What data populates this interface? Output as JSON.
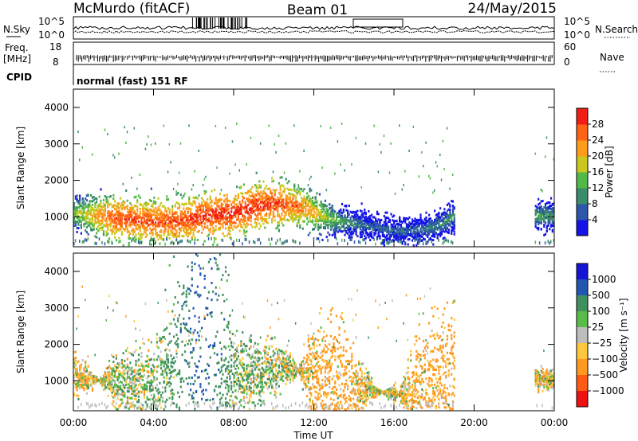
{
  "header": {
    "station": "McMurdo (fitACF)",
    "beam": "Beam 01",
    "date": "24/May/2015"
  },
  "status_panel": {
    "left_labels": [
      "N.Sky",
      "Freq.",
      "[MHz]",
      "CPID"
    ],
    "right_labels": [
      "N.Search",
      "Nave"
    ],
    "sky_ticks": [
      "10^5",
      "10^0"
    ],
    "search_ticks": [
      "10^5",
      "10^0"
    ],
    "freq_ticks": [
      "18",
      "8"
    ],
    "nave_ticks": [
      "60",
      "0"
    ],
    "cpid_text": "normal (fast) 151 RF"
  },
  "time_axis": {
    "label": "Time UT",
    "ticks": [
      "00:00",
      "04:00",
      "08:00",
      "12:00",
      "16:00",
      "20:00",
      "00:00"
    ]
  },
  "colors": {
    "power": [
      "#1414e6",
      "#2d57a8",
      "#3b8c6a",
      "#52b848",
      "#c8c81e",
      "#ff9c1e",
      "#ff6414",
      "#f01e14"
    ],
    "velocity": [
      "#ee1111",
      "#ff5a14",
      "#ff9a1e",
      "#ffc83c",
      "#bdbdbd",
      "#58bc48",
      "#3f8f5f",
      "#2157b0",
      "#1414d6"
    ]
  },
  "chart_data": [
    {
      "type": "heatmap",
      "title": "",
      "xlabel": "Time UT",
      "ylabel": "Slant Range [km]",
      "xlim": [
        0,
        24
      ],
      "ylim": [
        180,
        4500
      ],
      "yticks": [
        "1000",
        "2000",
        "3000",
        "4000"
      ],
      "colorbar": {
        "label": "Power [dB]",
        "ticks": [
          "4",
          "8",
          "12",
          "16",
          "20",
          "24",
          "28"
        ],
        "range": [
          0,
          32
        ]
      },
      "series": [
        {
          "x": [
            0.0,
            1.0,
            2.0,
            3.0,
            4.0,
            5.0,
            6.0,
            7.0,
            8.0,
            9.0,
            10.0,
            11.0,
            12.0,
            13.0,
            14.0,
            15.0,
            16.0,
            17.0,
            18.0,
            19.0,
            20.0,
            21.0,
            22.0,
            23.0,
            24.0
          ],
          "range_center": [
            1100,
            1000,
            950,
            900,
            850,
            850,
            950,
            1050,
            1100,
            1250,
            1350,
            1300,
            1100,
            900,
            800,
            700,
            600,
            600,
            700,
            1000,
            null,
            null,
            null,
            1000,
            1000
          ],
          "peak_power": [
            16,
            22,
            28,
            28,
            28,
            28,
            29,
            30,
            30,
            30,
            29,
            26,
            22,
            14,
            10,
            8,
            8,
            8,
            10,
            12,
            null,
            null,
            null,
            12,
            12
          ]
        }
      ]
    },
    {
      "type": "heatmap",
      "title": "",
      "xlabel": "Time UT",
      "ylabel": "Slant Range [km]",
      "xlim": [
        0,
        24
      ],
      "ylim": [
        180,
        4500
      ],
      "yticks": [
        "1000",
        "2000",
        "3000",
        "4000"
      ],
      "colorbar": {
        "label": "Velocity [m s⁻¹]",
        "ticks": [
          "1000",
          "500",
          "100",
          "25",
          "−25",
          "−100",
          "−500",
          "−1000"
        ],
        "range": [
          -1000,
          1000
        ]
      },
      "series": [
        {
          "x": [
            0.0,
            1.0,
            2.0,
            3.0,
            4.0,
            5.0,
            6.0,
            7.0,
            8.0,
            9.0,
            10.0,
            11.0,
            12.0,
            13.0,
            14.0,
            15.0,
            16.0,
            17.0,
            18.0,
            19.0,
            20.0,
            21.0,
            22.0,
            23.0,
            24.0
          ],
          "range_center": [
            1100,
            1000,
            950,
            900,
            850,
            850,
            950,
            1050,
            1100,
            1250,
            1350,
            1300,
            1100,
            900,
            800,
            700,
            600,
            600,
            700,
            1000,
            null,
            null,
            null,
            1000,
            1000
          ],
          "mean_velocity": [
            -80,
            -40,
            30,
            60,
            80,
            200,
            600,
            500,
            80,
            60,
            40,
            0,
            -150,
            -200,
            -120,
            -40,
            0,
            -150,
            -200,
            -200,
            null,
            null,
            null,
            -50,
            -50
          ]
        }
      ]
    }
  ]
}
